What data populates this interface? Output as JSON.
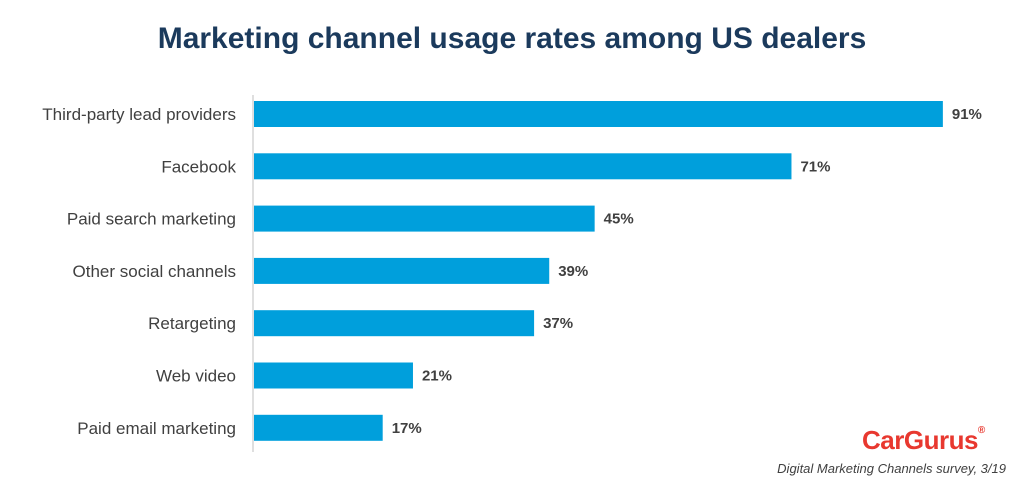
{
  "chart_data": {
    "type": "bar",
    "orientation": "horizontal",
    "title": "Marketing channel usage rates among US dealers",
    "categories": [
      "Third-party lead providers",
      "Facebook",
      "Paid search marketing",
      "Other social channels",
      "Retargeting",
      "Web video",
      "Paid email marketing"
    ],
    "values": [
      91,
      71,
      45,
      39,
      37,
      21,
      17
    ],
    "value_labels": [
      "91%",
      "71%",
      "45%",
      "39%",
      "37%",
      "21%",
      "17%"
    ],
    "xlim": [
      0,
      100
    ],
    "grid": false,
    "bar_color": "#009fdc"
  },
  "brand": {
    "logo_text": "CarGurus",
    "logo_mark": "®",
    "logo_color": "#e8382f"
  },
  "source": "Digital Marketing Channels survey, 3/19"
}
